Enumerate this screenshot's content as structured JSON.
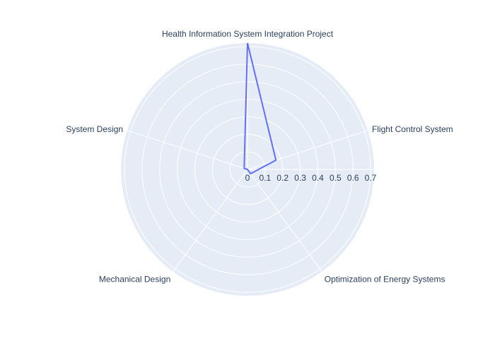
{
  "chart_data": {
    "type": "radar",
    "theta": [
      "Health Information System Integration Project",
      "Flight Control System",
      "Optimization of Energy Systems",
      "Mechanical Design",
      "System Design"
    ],
    "r": [
      0.72,
      0.17,
      0.03,
      0.0,
      0.02
    ],
    "closed": true,
    "radial_range": [
      0,
      0.72
    ],
    "radial_ticks": [
      "0",
      "0.1",
      "0.2",
      "0.3",
      "0.4",
      "0.5",
      "0.6",
      "0.7"
    ],
    "grid": true,
    "colors": {
      "background": "#e5ecf6",
      "grid": "#ffffff",
      "line": "#636efa",
      "text": "#2a3f5f"
    }
  }
}
